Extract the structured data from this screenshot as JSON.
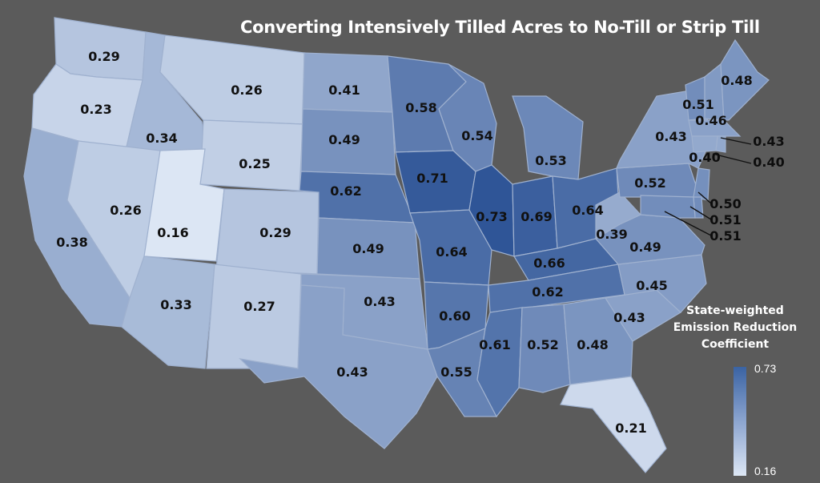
{
  "title": "Converting Intensively Tilled Acres to No-Till or Strip Till",
  "legend": {
    "title_lines": [
      "State-weighted",
      "Emission Reduction",
      "Coefficient"
    ],
    "max": "0.73",
    "min": "0.16"
  },
  "colors": {
    "background": "#5b5b5b",
    "scale_low": "#dce6f4",
    "scale_high": "#2f5597"
  },
  "states": [
    {
      "id": "WA",
      "value": "0.29"
    },
    {
      "id": "OR",
      "value": "0.23"
    },
    {
      "id": "CA",
      "value": "0.38"
    },
    {
      "id": "ID",
      "value": "0.34"
    },
    {
      "id": "NV",
      "value": "0.26"
    },
    {
      "id": "MT",
      "value": "0.26"
    },
    {
      "id": "WY",
      "value": "0.25"
    },
    {
      "id": "UT",
      "value": "0.16"
    },
    {
      "id": "CO",
      "value": "0.29"
    },
    {
      "id": "AZ",
      "value": "0.33"
    },
    {
      "id": "NM",
      "value": "0.27"
    },
    {
      "id": "ND",
      "value": "0.41"
    },
    {
      "id": "SD",
      "value": "0.49"
    },
    {
      "id": "NE",
      "value": "0.62"
    },
    {
      "id": "KS",
      "value": "0.49"
    },
    {
      "id": "OK",
      "value": "0.43"
    },
    {
      "id": "TX",
      "value": "0.43"
    },
    {
      "id": "MN",
      "value": "0.58"
    },
    {
      "id": "IA",
      "value": "0.71"
    },
    {
      "id": "MO",
      "value": "0.64"
    },
    {
      "id": "AR",
      "value": "0.60"
    },
    {
      "id": "LA",
      "value": "0.55"
    },
    {
      "id": "WI",
      "value": "0.54"
    },
    {
      "id": "IL",
      "value": "0.73"
    },
    {
      "id": "MI",
      "value": "0.53"
    },
    {
      "id": "IN",
      "value": "0.69"
    },
    {
      "id": "OH",
      "value": "0.64"
    },
    {
      "id": "KY",
      "value": "0.66"
    },
    {
      "id": "TN",
      "value": "0.62"
    },
    {
      "id": "MS",
      "value": "0.61"
    },
    {
      "id": "AL",
      "value": "0.52"
    },
    {
      "id": "GA",
      "value": "0.48"
    },
    {
      "id": "FL",
      "value": "0.21"
    },
    {
      "id": "SC",
      "value": "0.43"
    },
    {
      "id": "NC",
      "value": "0.45"
    },
    {
      "id": "VA",
      "value": "0.49"
    },
    {
      "id": "WV",
      "value": "0.39"
    },
    {
      "id": "PA",
      "value": "0.52"
    },
    {
      "id": "NY",
      "value": "0.43"
    },
    {
      "id": "VT",
      "value": "0.51"
    },
    {
      "id": "NH",
      "value": "0.46"
    },
    {
      "id": "ME",
      "value": "0.48"
    },
    {
      "id": "MA",
      "value": "0.43"
    },
    {
      "id": "RI",
      "value": "0.40"
    },
    {
      "id": "CT",
      "value": "0.40"
    },
    {
      "id": "NJ",
      "value": "0.50"
    },
    {
      "id": "DE",
      "value": "0.51"
    },
    {
      "id": "MD",
      "value": "0.51"
    }
  ]
}
